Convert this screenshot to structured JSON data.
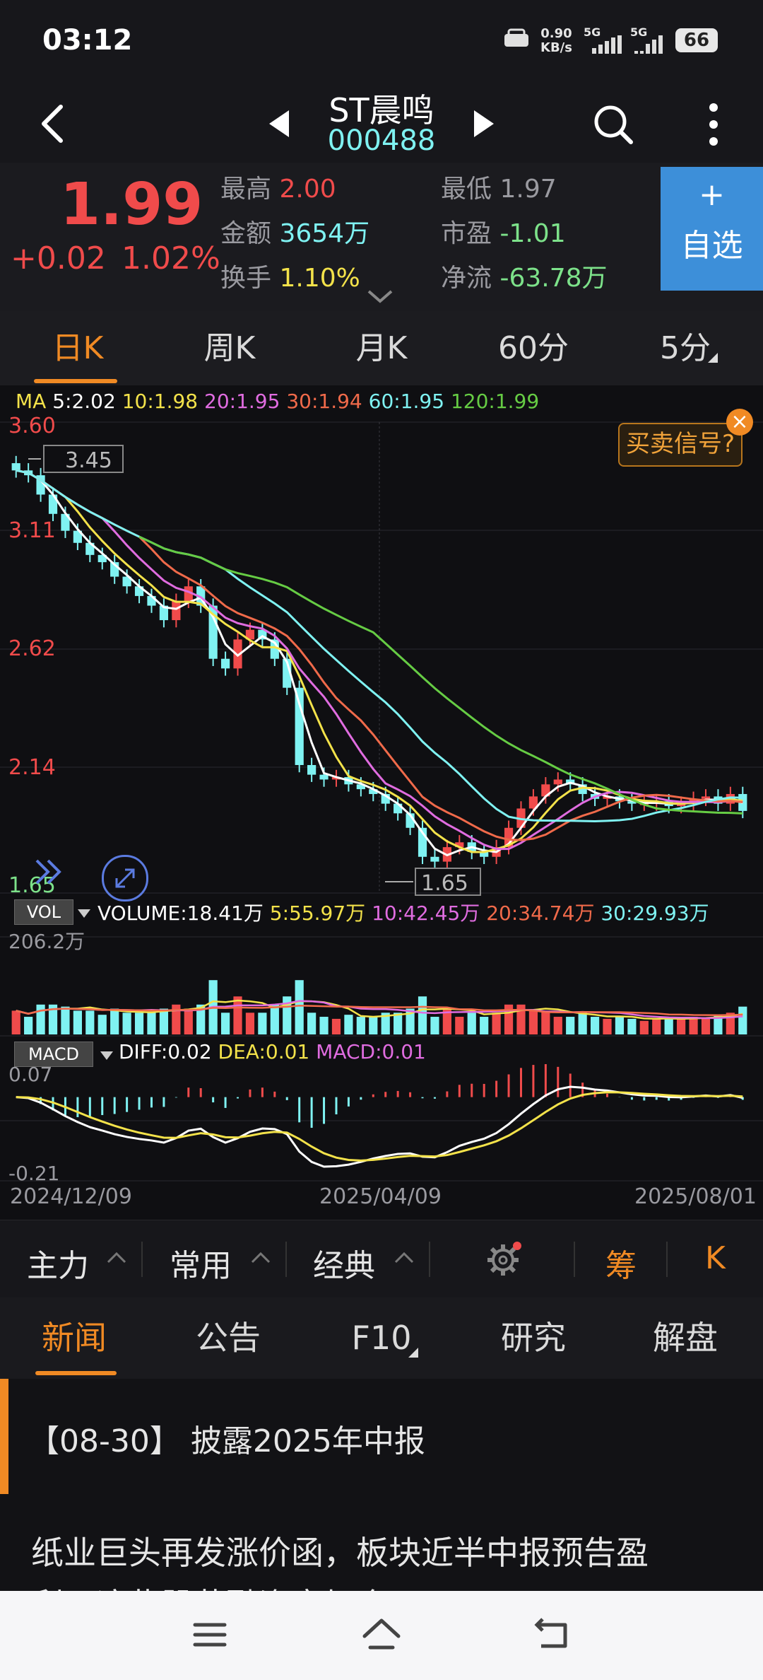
{
  "status": {
    "time": "03:12",
    "net_speed_value": "0.90",
    "net_speed_unit": "KB/s",
    "sim1": "5G",
    "sim2": "5G",
    "battery": "66"
  },
  "header": {
    "stock_name": "ST晨鸣",
    "stock_code": "000488"
  },
  "quote": {
    "price": "1.99",
    "change": "+0.02",
    "change_pct": "1.02%",
    "high_label": "最高",
    "high_value": "2.00",
    "low_label": "最低",
    "low_value": "1.97",
    "amount_label": "金额",
    "amount_value": "3654万",
    "pe_label": "市盈",
    "pe_value": "-1.01",
    "turnover_label": "换手",
    "turnover_value": "1.10%",
    "netflow_label": "净流",
    "netflow_value": "-63.78万",
    "add_plus": "+",
    "add_label": "自选"
  },
  "period_tabs": [
    "日K",
    "周K",
    "月K",
    "60分",
    "5分"
  ],
  "ma_legend": {
    "label": "MA",
    "ma5": "5:2.02",
    "ma10": "10:1.98",
    "ma20": "20:1.95",
    "ma30": "30:1.94",
    "ma60": "60:1.95",
    "ma120": "120:1.99"
  },
  "price_axis": [
    "3.60",
    "3.11",
    "2.62",
    "2.14",
    "1.65"
  ],
  "annotations": {
    "high_mark": "3.45",
    "low_mark": "1.65",
    "signal_button": "买卖信号?",
    "signal_close": "×"
  },
  "volume_legend": {
    "label": "VOL",
    "volume": "VOLUME:18.41万",
    "v5": "5:55.97万",
    "v10": "10:42.45万",
    "v20": "20:34.74万",
    "v30": "30:29.93万",
    "max": "206.2万"
  },
  "macd_legend": {
    "label": "MACD",
    "diff": "DIFF:0.02",
    "dea": "DEA:0.01",
    "macd": "MACD:0.01",
    "top": "0.07",
    "bottom": "-0.21"
  },
  "dates": [
    "2024/12/09",
    "2025/04/09",
    "2025/08/01"
  ],
  "toolbar": {
    "main": "主力",
    "common": "常用",
    "classic": "经典",
    "chip": "筹",
    "k": "K"
  },
  "news_tabs": [
    "新闻",
    "公告",
    "F10",
    "研究",
    "解盘"
  ],
  "news": {
    "item1": "【08-30】 披露2025年中报",
    "item2_line1": "纸业巨头再发涨价函，板块近半中报预告盈",
    "item2_line2": "利，这些股获融资客加仓"
  },
  "colors": {
    "up": "#f04b4b",
    "down": "#7ff2f2",
    "accent": "#f08a24",
    "ma5": "#ffffff",
    "ma10": "#f3e24a",
    "ma20": "#e06ce0",
    "ma30": "#f06a4a",
    "ma60": "#7ff2f2",
    "ma120": "#66cc44"
  },
  "chart_data": {
    "type": "candlestick",
    "x_start": "2024/12/09",
    "x_end": "2025/08/01",
    "ylim": [
      1.65,
      3.6
    ],
    "close_series": [
      3.4,
      3.38,
      3.3,
      3.22,
      3.15,
      3.1,
      3.05,
      3.02,
      2.96,
      2.92,
      2.88,
      2.84,
      2.78,
      2.86,
      2.92,
      2.84,
      2.62,
      2.58,
      2.7,
      2.74,
      2.7,
      2.62,
      2.5,
      2.18,
      2.14,
      2.12,
      2.13,
      2.1,
      2.08,
      2.06,
      2.02,
      1.98,
      1.92,
      1.8,
      1.78,
      1.84,
      1.86,
      1.82,
      1.8,
      1.84,
      1.92,
      2.0,
      2.05,
      2.1,
      2.12,
      2.1,
      2.06,
      2.04,
      2.05,
      2.03,
      2.02,
      2.02,
      2.03,
      2.01,
      2.02,
      2.04,
      2.05,
      2.02,
      2.06,
      1.99
    ],
    "high_mark": 3.45,
    "low_mark": 1.65
  }
}
